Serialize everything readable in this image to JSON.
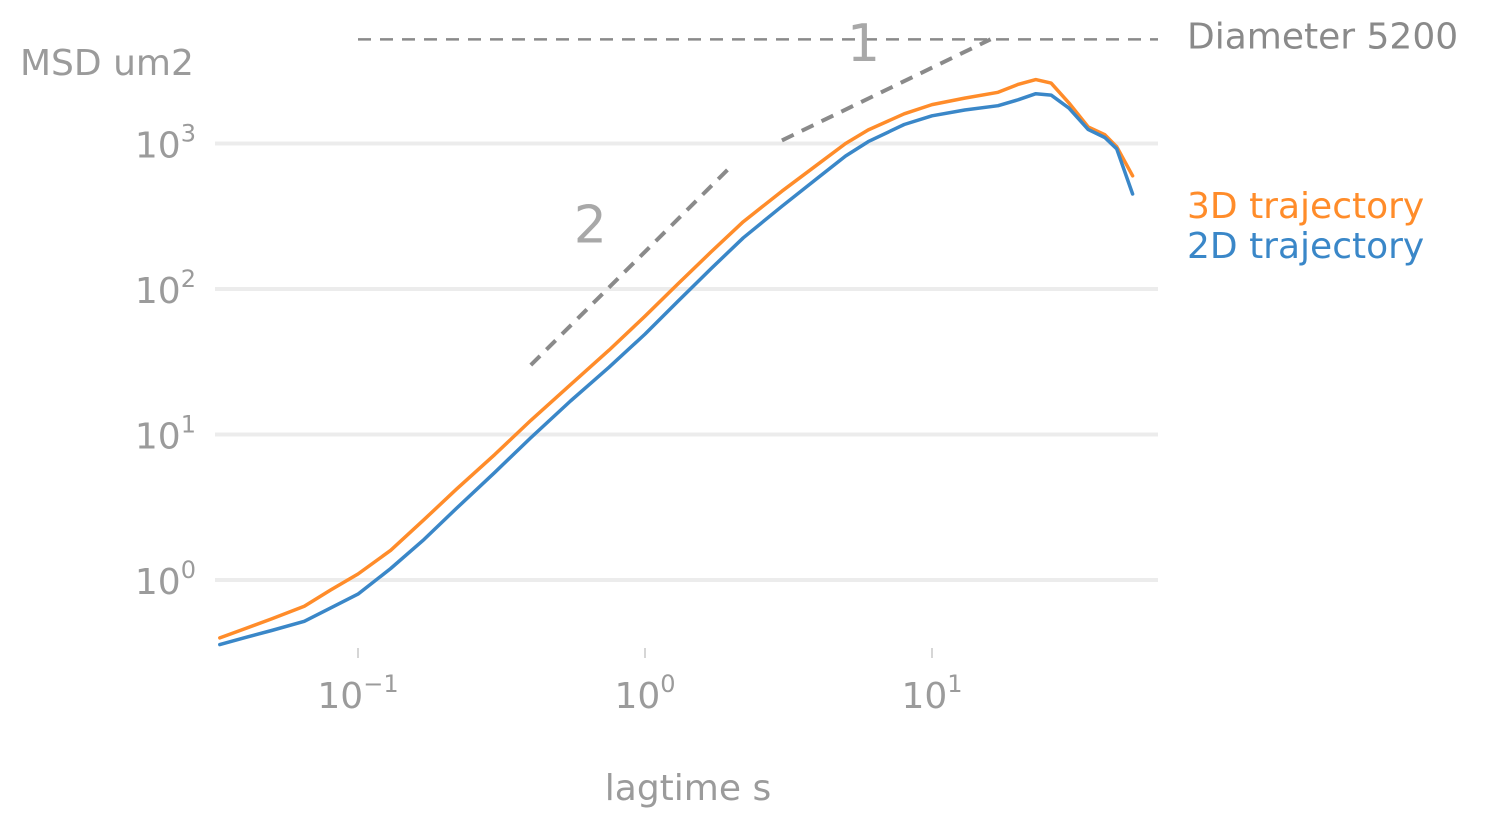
{
  "chart_data": {
    "type": "line",
    "xscale": "log",
    "yscale": "log",
    "xlim": [
      0.03,
      55
    ],
    "ylim": [
      0.3,
      6000
    ],
    "xlabel": "lagtime s",
    "ylabel": "MSD um2",
    "grid": "horizontal",
    "x_ticks": [
      {
        "value": 0.1,
        "base": "10",
        "exp": "−1"
      },
      {
        "value": 1,
        "base": "10",
        "exp": "0"
      },
      {
        "value": 10,
        "base": "10",
        "exp": "1"
      }
    ],
    "y_ticks": [
      {
        "value": 1,
        "base": "10",
        "exp": "0"
      },
      {
        "value": 10,
        "base": "10",
        "exp": "1"
      },
      {
        "value": 100,
        "base": "10",
        "exp": "2"
      },
      {
        "value": 1000,
        "base": "10",
        "exp": "3"
      }
    ],
    "series": [
      {
        "name": "3D trajectory",
        "color": "#ff8c2a",
        "points": [
          [
            0.033,
            0.4
          ],
          [
            0.04,
            0.46
          ],
          [
            0.05,
            0.54
          ],
          [
            0.065,
            0.66
          ],
          [
            0.08,
            0.85
          ],
          [
            0.1,
            1.1
          ],
          [
            0.13,
            1.6
          ],
          [
            0.17,
            2.6
          ],
          [
            0.22,
            4.2
          ],
          [
            0.3,
            7.3
          ],
          [
            0.4,
            12.5
          ],
          [
            0.55,
            22
          ],
          [
            0.75,
            38
          ],
          [
            1.0,
            65
          ],
          [
            1.3,
            108
          ],
          [
            1.7,
            180
          ],
          [
            2.2,
            290
          ],
          [
            3.0,
            470
          ],
          [
            4.0,
            720
          ],
          [
            5.0,
            1000
          ],
          [
            6.0,
            1240
          ],
          [
            8.0,
            1600
          ],
          [
            10.0,
            1850
          ],
          [
            13.0,
            2050
          ],
          [
            17.0,
            2250
          ],
          [
            20.0,
            2550
          ],
          [
            23.0,
            2750
          ],
          [
            26.0,
            2600
          ],
          [
            30.0,
            1900
          ],
          [
            35.0,
            1300
          ],
          [
            40.0,
            1150
          ],
          [
            44.0,
            950
          ],
          [
            50.0,
            600
          ]
        ]
      },
      {
        "name": "2D trajectory",
        "color": "#3a87c8",
        "points": [
          [
            0.033,
            0.36
          ],
          [
            0.04,
            0.4
          ],
          [
            0.05,
            0.45
          ],
          [
            0.065,
            0.52
          ],
          [
            0.08,
            0.64
          ],
          [
            0.1,
            0.8
          ],
          [
            0.13,
            1.2
          ],
          [
            0.17,
            1.9
          ],
          [
            0.22,
            3.1
          ],
          [
            0.3,
            5.5
          ],
          [
            0.4,
            9.5
          ],
          [
            0.55,
            17
          ],
          [
            0.75,
            29
          ],
          [
            1.0,
            49
          ],
          [
            1.3,
            82
          ],
          [
            1.7,
            138
          ],
          [
            2.2,
            225
          ],
          [
            3.0,
            370
          ],
          [
            4.0,
            580
          ],
          [
            5.0,
            820
          ],
          [
            6.0,
            1030
          ],
          [
            8.0,
            1350
          ],
          [
            10.0,
            1550
          ],
          [
            13.0,
            1700
          ],
          [
            17.0,
            1820
          ],
          [
            20.0,
            2000
          ],
          [
            23.0,
            2200
          ],
          [
            26.0,
            2150
          ],
          [
            30.0,
            1750
          ],
          [
            35.0,
            1250
          ],
          [
            40.0,
            1100
          ],
          [
            44.0,
            920
          ],
          [
            50.0,
            450
          ]
        ]
      }
    ],
    "reference_lines": [
      {
        "label": "Diameter 5200",
        "y": 5200
      }
    ],
    "annotations": [
      {
        "text": "2",
        "from": [
          0.4,
          30
        ],
        "to": [
          2.0,
          700
        ]
      },
      {
        "text": "1",
        "from": [
          3.0,
          1050
        ],
        "to": [
          16.0,
          5200
        ]
      }
    ]
  }
}
